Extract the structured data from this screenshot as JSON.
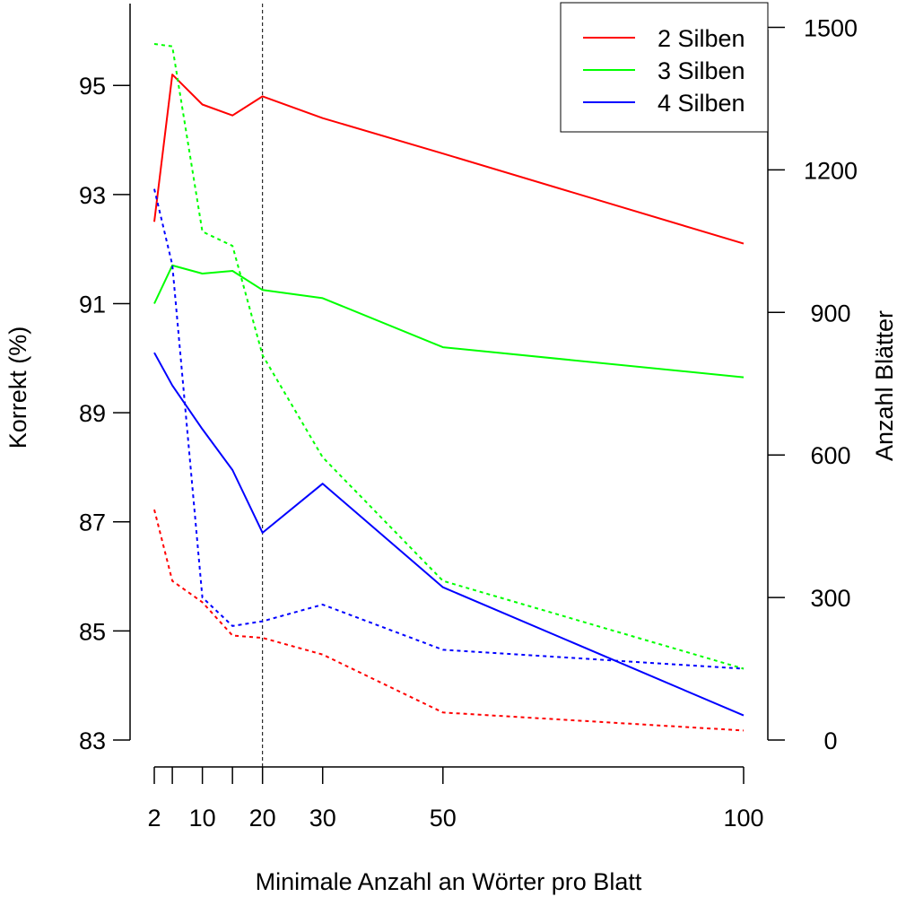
{
  "chart_data": {
    "type": "line",
    "xlabel": "Minimale Anzahl an Wörter pro Blatt",
    "ylabel": "Korrekt (%)",
    "y2label": "Anzahl Blätter",
    "xlim": [
      2,
      100
    ],
    "ylim": [
      83,
      96.5
    ],
    "y2lim": [
      0,
      1550
    ],
    "x_ticks": [
      2,
      5,
      10,
      15,
      20,
      30,
      50,
      100
    ],
    "x_tick_labels": [
      "2",
      "",
      "10",
      "",
      "20",
      "30",
      "50",
      "100"
    ],
    "y_ticks": [
      83,
      85,
      87,
      89,
      91,
      93,
      95
    ],
    "y2_ticks": [
      0,
      300,
      600,
      900,
      1200,
      1500
    ],
    "reference_line_x": 20,
    "legend_position": "top-right",
    "x": [
      2,
      5,
      10,
      15,
      20,
      30,
      50,
      100
    ],
    "series": [
      {
        "name": "2 Silben",
        "axis": "left",
        "style": "solid",
        "color": "#ff0000",
        "values": [
          92.5,
          95.2,
          94.65,
          94.45,
          94.8,
          94.4,
          93.75,
          92.1
        ]
      },
      {
        "name": "3 Silben",
        "axis": "left",
        "style": "solid",
        "color": "#00ff00",
        "values": [
          91.0,
          91.7,
          91.55,
          91.6,
          91.25,
          91.1,
          90.2,
          89.65
        ]
      },
      {
        "name": "4 Silben",
        "axis": "left",
        "style": "solid",
        "color": "#0000ff",
        "values": [
          90.1,
          89.5,
          88.7,
          87.95,
          86.8,
          87.7,
          85.8,
          83.45
        ]
      },
      {
        "name": "2 Silben",
        "axis": "right",
        "style": "dotted",
        "color": "#ff0000",
        "values": [
          485,
          335,
          290,
          220,
          215,
          180,
          58,
          20
        ]
      },
      {
        "name": "3 Silben",
        "axis": "right",
        "style": "dotted",
        "color": "#00ff00",
        "values": [
          1465,
          1460,
          1070,
          1040,
          810,
          595,
          335,
          150
        ]
      },
      {
        "name": "4 Silben",
        "axis": "right",
        "style": "dotted",
        "color": "#0000ff",
        "values": [
          1160,
          1000,
          300,
          240,
          250,
          285,
          190,
          150
        ]
      }
    ]
  }
}
